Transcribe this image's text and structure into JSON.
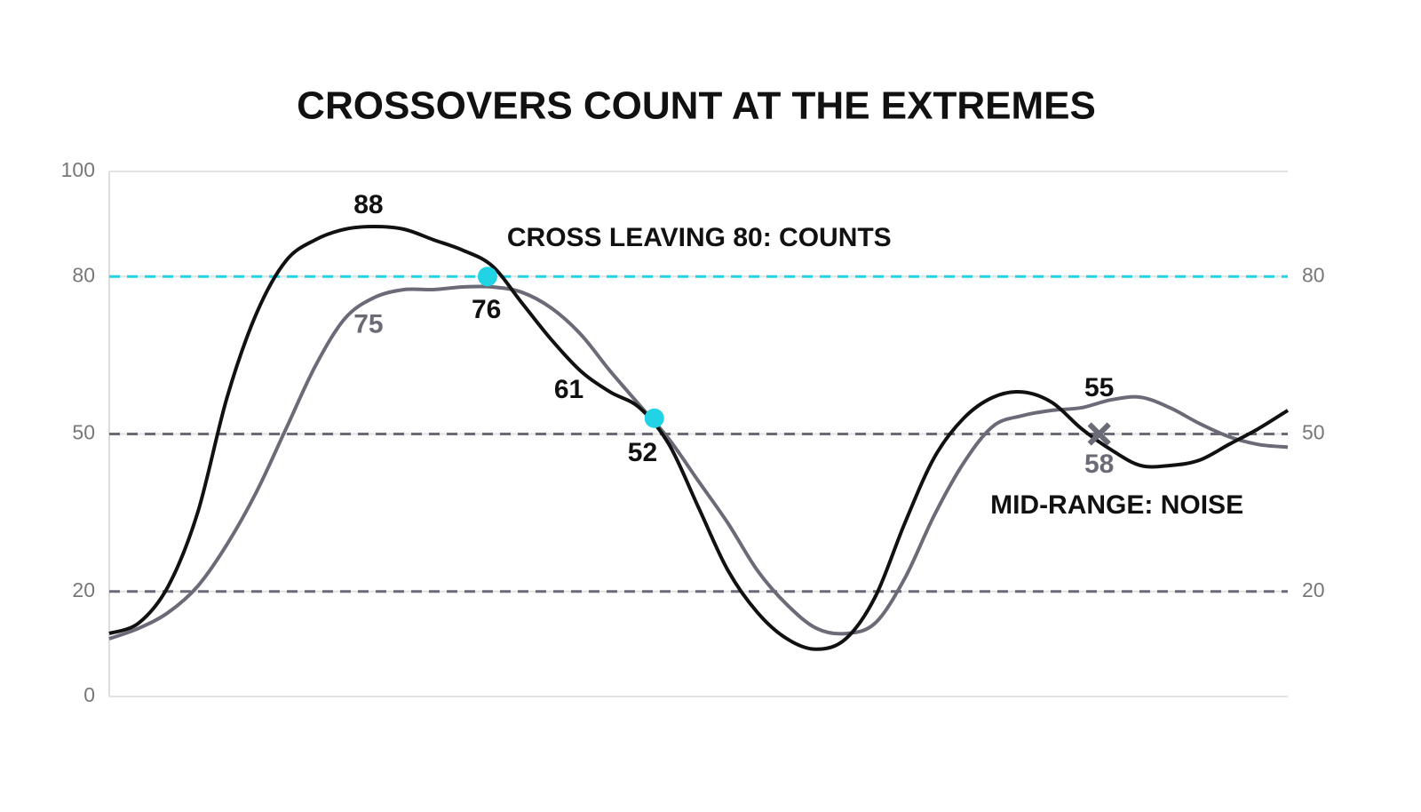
{
  "chart_data": {
    "type": "line",
    "title": "CROSSOVERS COUNT AT THE EXTREMES",
    "x": [
      0,
      1,
      2,
      3,
      4,
      5,
      6,
      7,
      8,
      9,
      10,
      11,
      12,
      13,
      14,
      15,
      16,
      17,
      18,
      19,
      20,
      21,
      22,
      23,
      24,
      25,
      26,
      27,
      28,
      29,
      30,
      31,
      32,
      33,
      34,
      35,
      36,
      37,
      38,
      39,
      40
    ],
    "xlim": [
      0,
      40
    ],
    "ylim": [
      0,
      100
    ],
    "yticks": [
      0,
      20,
      50,
      80,
      100
    ],
    "y2lim": [
      0,
      100
    ],
    "y2ticks": [
      20,
      50,
      80
    ],
    "grid": true,
    "series": [
      {
        "color": "#111111",
        "values": [
          12,
          14,
          21,
          35,
          57,
          73,
          83,
          87,
          89,
          89.5,
          89,
          87,
          85,
          82,
          75,
          68,
          62,
          58,
          55,
          48,
          36,
          24,
          16,
          11,
          9,
          11,
          19,
          33,
          45.5,
          53,
          57,
          58,
          56,
          51,
          47,
          44,
          44,
          45,
          48,
          51,
          54.5
        ]
      },
      {
        "color": "#6b6b78",
        "values": [
          11,
          13,
          16,
          21,
          29,
          39,
          51,
          63,
          72,
          76,
          77.5,
          77.5,
          78,
          78,
          77,
          74,
          69,
          62,
          55.5,
          49,
          41,
          33,
          24,
          17.5,
          13,
          12,
          14,
          22.5,
          34.5,
          44.5,
          51.5,
          53.5,
          54.5,
          55,
          56.5,
          57,
          55,
          52,
          49.5,
          48,
          47.5
        ]
      }
    ],
    "reference_lines": [
      {
        "value": 80,
        "color": "#22d3e6"
      },
      {
        "value": 50,
        "color": "#6b6b78"
      },
      {
        "value": 20,
        "color": "#6b6b78"
      }
    ],
    "markers": [
      {
        "x": 12.84,
        "y": 80,
        "shape": "circle",
        "color": "#22d3e6"
      },
      {
        "x": 18.5,
        "y": 53,
        "shape": "circle",
        "color": "#22d3e6"
      },
      {
        "x": 33.6,
        "y": 50,
        "shape": "cross",
        "color": "#6b6b78"
      }
    ],
    "annotations": [
      {
        "text": "88",
        "x": 8.8,
        "y": 93.4,
        "color": "#111111",
        "anchor": "middle"
      },
      {
        "text": "75",
        "x": 8.8,
        "y": 70.6,
        "color": "#6b6b78",
        "anchor": "middle"
      },
      {
        "text": "76",
        "x": 12.8,
        "y": 73.4,
        "color": "#111111",
        "anchor": "middle"
      },
      {
        "text": "61",
        "x": 15.6,
        "y": 58.2,
        "color": "#111111",
        "anchor": "middle"
      },
      {
        "text": "52",
        "x": 18.1,
        "y": 46.2,
        "color": "#111111",
        "anchor": "middle"
      },
      {
        "text": "55",
        "x": 33.6,
        "y": 58.5,
        "color": "#111111",
        "anchor": "middle"
      },
      {
        "text": "58",
        "x": 33.6,
        "y": 44,
        "color": "#6b6b78",
        "anchor": "middle"
      },
      {
        "text": "CROSS LEAVING 80: COUNTS",
        "x": 13.5,
        "y": 87.1,
        "color": "#111111",
        "anchor": "start"
      },
      {
        "text": "MID-RANGE: NOISE",
        "x": 34.2,
        "y": 36.2,
        "color": "#111111",
        "anchor": "middle"
      }
    ]
  }
}
